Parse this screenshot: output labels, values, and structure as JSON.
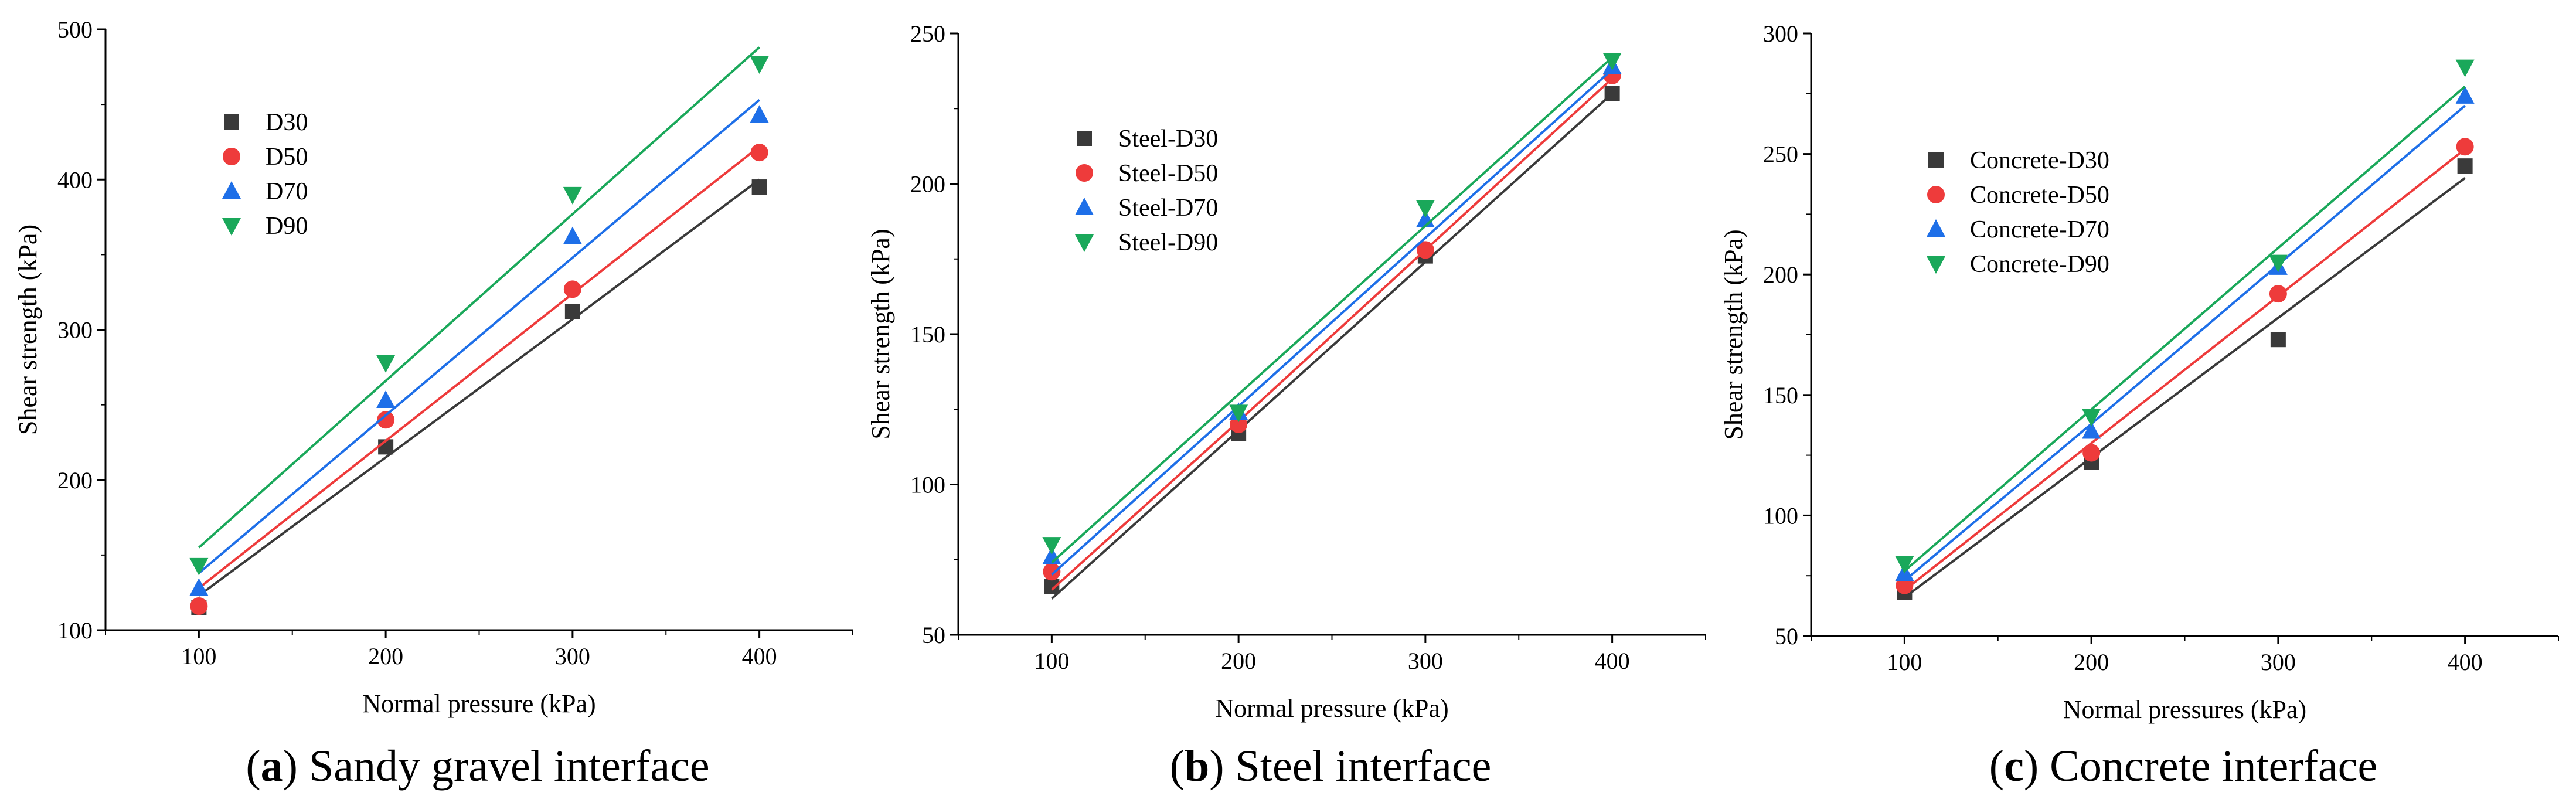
{
  "figure": {
    "colors": {
      "D30": "#3a3a3a",
      "D50": "#ee3b3b",
      "D70": "#1e6fe8",
      "D90": "#1aa85a"
    },
    "markers": {
      "D30": "square",
      "D50": "circle",
      "D70": "triangle-up",
      "D90": "triangle-down"
    }
  },
  "chart_data": [
    {
      "type": "scatter",
      "caption_letter": "a",
      "caption_rest": ") Sandy gravel interface",
      "xlabel": "Normal pressure (kPa)",
      "ylabel": "Shear strength (kPa)",
      "xlim": [
        50,
        450
      ],
      "ylim": [
        100,
        500
      ],
      "xticks": [
        100,
        200,
        300,
        400
      ],
      "yticks": [
        100,
        200,
        300,
        400,
        500
      ],
      "x": [
        100,
        200,
        300,
        400
      ],
      "series": [
        {
          "name": "D30",
          "key": "D30",
          "values": [
            115,
            222,
            312,
            395
          ],
          "fit": [
            123,
            215,
            307,
            400
          ]
        },
        {
          "name": "D50",
          "key": "D50",
          "values": [
            116,
            240,
            327,
            418
          ],
          "fit": [
            128,
            226,
            324,
            422
          ]
        },
        {
          "name": "D70",
          "key": "D70",
          "values": [
            128,
            253,
            362,
            443
          ],
          "fit": [
            138,
            243,
            348,
            453
          ]
        },
        {
          "name": "D90",
          "key": "D90",
          "values": [
            143,
            278,
            390,
            477
          ],
          "fit": [
            155,
            266,
            377,
            488
          ]
        }
      ]
    },
    {
      "type": "scatter",
      "caption_letter": "b",
      "caption_rest": ") Steel interface",
      "xlabel": "Normal pressure (kPa)",
      "ylabel": "Shear strength (kPa)",
      "xlim": [
        50,
        450
      ],
      "ylim": [
        50,
        250
      ],
      "xticks": [
        100,
        200,
        300,
        400
      ],
      "yticks": [
        50,
        100,
        150,
        200,
        250
      ],
      "x": [
        100,
        200,
        300,
        400
      ],
      "series": [
        {
          "name": "Steel-D30",
          "key": "D30",
          "values": [
            66,
            117,
            176,
            230
          ],
          "fit": [
            62,
            118,
            174,
            230
          ]
        },
        {
          "name": "Steel-D50",
          "key": "D50",
          "values": [
            71,
            120,
            178,
            236
          ],
          "fit": [
            65,
            121,
            178,
            235
          ]
        },
        {
          "name": "Steel-D70",
          "key": "D70",
          "values": [
            76,
            124,
            188,
            239
          ],
          "fit": [
            70,
            126,
            182,
            238
          ]
        },
        {
          "name": "Steel-D90",
          "key": "D90",
          "values": [
            80,
            124,
            192,
            241
          ],
          "fit": [
            74,
            130,
            186,
            242
          ]
        }
      ]
    },
    {
      "type": "scatter",
      "caption_letter": "c",
      "caption_rest": ") Concrete interface",
      "xlabel": "Normal pressures (kPa)",
      "ylabel": "Shear strength (kPa)",
      "xlim": [
        50,
        450
      ],
      "ylim": [
        50,
        300
      ],
      "xticks": [
        100,
        200,
        300,
        400
      ],
      "yticks": [
        50,
        100,
        150,
        200,
        250,
        300
      ],
      "x": [
        100,
        200,
        300,
        400
      ],
      "series": [
        {
          "name": "Concrete-D30",
          "key": "D30",
          "values": [
            68,
            122,
            173,
            245
          ],
          "fit": [
            66,
            124,
            182,
            240
          ]
        },
        {
          "name": "Concrete-D50",
          "key": "D50",
          "values": [
            71,
            126,
            192,
            253
          ],
          "fit": [
            69,
            130,
            191,
            252
          ]
        },
        {
          "name": "Concrete-D70",
          "key": "D70",
          "values": [
            76,
            135,
            203,
            274
          ],
          "fit": [
            73,
            138,
            204,
            270
          ]
        },
        {
          "name": "Concrete-D90",
          "key": "D90",
          "values": [
            80,
            141,
            205,
            286
          ],
          "fit": [
            77,
            144,
            211,
            278
          ]
        }
      ]
    }
  ]
}
